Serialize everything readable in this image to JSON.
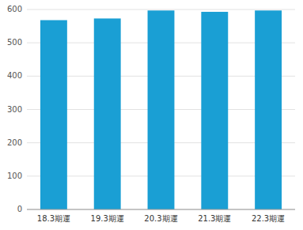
{
  "chart_data": {
    "type": "bar",
    "categories": [
      "18.3期運",
      "19.3期運",
      "20.3期運",
      "21.3期運",
      "22.3期運"
    ],
    "values": [
      568,
      573,
      597,
      593,
      597
    ],
    "color": "#1a9fd4",
    "ylim": [
      0,
      600
    ],
    "yticks": [
      0,
      100,
      200,
      300,
      400,
      500,
      600
    ],
    "grid": true
  }
}
